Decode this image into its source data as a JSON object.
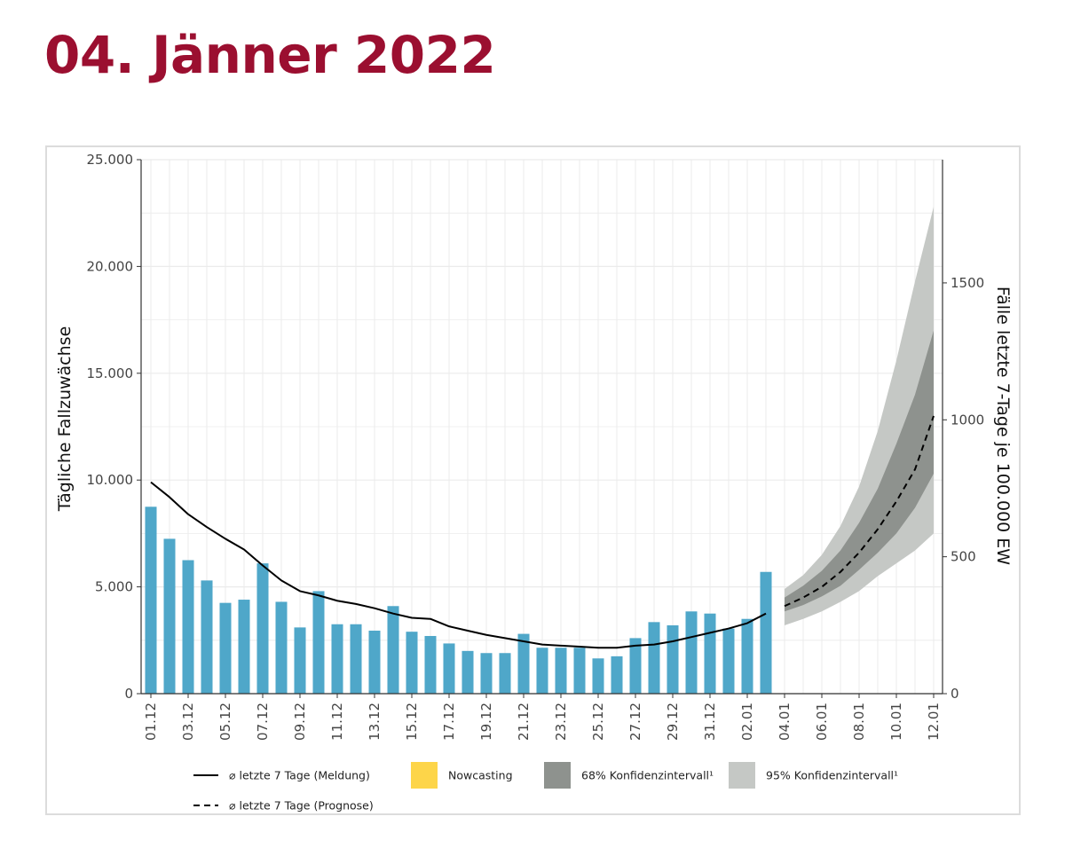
{
  "page": {
    "title": "04. Jänner 2022"
  },
  "colors": {
    "title": "#9b0f30",
    "bar": "#4fa7c9",
    "line": "#000000",
    "ci68": "#8e928e",
    "ci95": "#c5c8c5",
    "nowcasting": "#fdd549",
    "grid": "#ebebeb"
  },
  "chart_data": {
    "type": "bar",
    "ylabel": "Tägliche Fallzuwächse",
    "y2label": "Fälle letzte 7-Tage je 100.000 EW",
    "ylim": [
      0,
      25000
    ],
    "y2lim": [
      0,
      1950
    ],
    "yticks": [
      "0",
      "5.000",
      "10.000",
      "15.000",
      "20.000",
      "25.000"
    ],
    "y2ticks": [
      "0",
      "500",
      "1000",
      "1500"
    ],
    "xticks": [
      "01.12",
      "03.12",
      "05.12",
      "07.12",
      "09.12",
      "11.12",
      "13.12",
      "15.12",
      "17.12",
      "19.12",
      "21.12",
      "23.12",
      "25.12",
      "27.12",
      "29.12",
      "31.12",
      "02.01",
      "04.01",
      "06.01",
      "08.01",
      "10.01",
      "12.01"
    ],
    "x_range": [
      "01.12",
      "12.01"
    ],
    "grid": true,
    "bars": {
      "x": [
        "01.12",
        "02.12",
        "03.12",
        "04.12",
        "05.12",
        "06.12",
        "07.12",
        "08.12",
        "09.12",
        "10.12",
        "11.12",
        "12.12",
        "13.12",
        "14.12",
        "15.12",
        "16.12",
        "17.12",
        "18.12",
        "19.12",
        "20.12",
        "21.12",
        "22.12",
        "23.12",
        "24.12",
        "25.12",
        "26.12",
        "27.12",
        "28.12",
        "29.12",
        "30.12",
        "31.12",
        "01.01",
        "02.01",
        "03.01"
      ],
      "values": [
        8750,
        7250,
        6250,
        5300,
        4250,
        4400,
        6100,
        4300,
        3100,
        4800,
        3250,
        3250,
        2950,
        4100,
        2900,
        2700,
        2350,
        2000,
        1900,
        1900,
        2800,
        2150,
        2150,
        2150,
        1650,
        1750,
        2600,
        3350,
        3200,
        3850,
        3750,
        3050,
        3500,
        5700
      ]
    },
    "series": [
      {
        "name": "⌀ letzte 7 Tage (Meldung)",
        "x": [
          "01.12",
          "02.12",
          "03.12",
          "04.12",
          "05.12",
          "06.12",
          "07.12",
          "08.12",
          "09.12",
          "10.12",
          "11.12",
          "12.12",
          "13.12",
          "14.12",
          "15.12",
          "16.12",
          "17.12",
          "18.12",
          "19.12",
          "20.12",
          "21.12",
          "22.12",
          "23.12",
          "24.12",
          "25.12",
          "26.12",
          "27.12",
          "28.12",
          "29.12",
          "30.12",
          "31.12",
          "01.01",
          "02.01",
          "03.01"
        ],
        "values": [
          9900,
          9200,
          8400,
          7800,
          7250,
          6750,
          6000,
          5300,
          4800,
          4600,
          4350,
          4200,
          4000,
          3750,
          3550,
          3500,
          3150,
          2950,
          2750,
          2600,
          2450,
          2300,
          2250,
          2200,
          2150,
          2150,
          2250,
          2300,
          2450,
          2650,
          2850,
          3050,
          3300,
          3750
        ]
      },
      {
        "name": "⌀ letzte 7 Tage (Prognose)",
        "x": [
          "04.01",
          "05.01",
          "06.01",
          "07.01",
          "08.01",
          "09.01",
          "10.01",
          "11.01",
          "12.01"
        ],
        "values": [
          4100,
          4500,
          5000,
          5700,
          6600,
          7700,
          9000,
          10500,
          13000
        ]
      }
    ],
    "ci68": {
      "name": "68% Konfidenzintervall¹",
      "x": [
        "04.01",
        "05.01",
        "06.01",
        "07.01",
        "08.01",
        "09.01",
        "10.01",
        "11.01",
        "12.01"
      ],
      "lower": [
        3850,
        4150,
        4550,
        5050,
        5800,
        6600,
        7500,
        8700,
        10300
      ],
      "upper": [
        4500,
        5050,
        5750,
        6700,
        8000,
        9600,
        11700,
        14000,
        17000
      ]
    },
    "ci95": {
      "name": "95% Konfidenzintervall¹",
      "x": [
        "04.01",
        "05.01",
        "06.01",
        "07.01",
        "08.01",
        "09.01",
        "10.01",
        "11.01",
        "12.01"
      ],
      "lower": [
        3200,
        3500,
        3850,
        4300,
        4800,
        5500,
        6100,
        6700,
        7500
      ],
      "upper": [
        4900,
        5550,
        6500,
        7850,
        9700,
        12300,
        15600,
        19300,
        22800
      ]
    },
    "legend": {
      "placement": "bottom",
      "items": [
        {
          "label": "⌀ letzte 7 Tage (Meldung)",
          "kind": "solid-line"
        },
        {
          "label": "Nowcasting",
          "kind": "fill",
          "color_key": "nowcasting"
        },
        {
          "label": "68% Konfidenzintervall¹",
          "kind": "fill",
          "color_key": "ci68"
        },
        {
          "label": "95% Konfidenzintervall¹",
          "kind": "fill",
          "color_key": "ci95"
        },
        {
          "label": "⌀ letzte 7 Tage (Prognose)",
          "kind": "dashed-line"
        }
      ]
    }
  }
}
